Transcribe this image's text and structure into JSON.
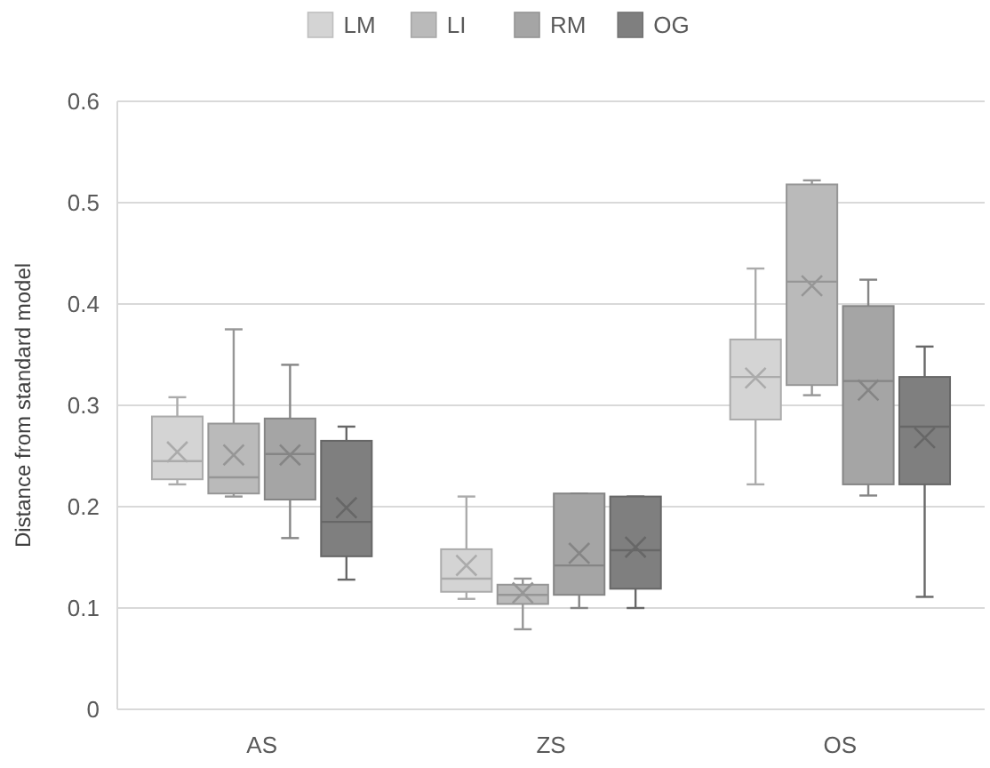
{
  "chart_data": {
    "type": "box",
    "ylabel": "Distance from standard model",
    "categories": [
      "AS",
      "ZS",
      "OS"
    ],
    "ylim": [
      0,
      0.6
    ],
    "yticks": [
      0,
      0.1,
      0.2,
      0.3,
      0.4,
      0.5,
      0.6
    ],
    "grid": "y",
    "legend": "top",
    "series": [
      {
        "name": "LM",
        "color": "#d4d4d4",
        "boxes": [
          {
            "low": 0.222,
            "q1": 0.227,
            "median": 0.245,
            "q3": 0.289,
            "high": 0.308,
            "mean": 0.254
          },
          {
            "low": 0.109,
            "q1": 0.116,
            "median": 0.129,
            "q3": 0.158,
            "high": 0.21,
            "mean": 0.142
          },
          {
            "low": 0.222,
            "q1": 0.286,
            "median": 0.328,
            "q3": 0.365,
            "high": 0.435,
            "mean": 0.327
          }
        ]
      },
      {
        "name": "LI",
        "color": "#bababa",
        "boxes": [
          {
            "low": 0.21,
            "q1": 0.213,
            "median": 0.229,
            "q3": 0.282,
            "high": 0.375,
            "mean": 0.251
          },
          {
            "low": 0.079,
            "q1": 0.104,
            "median": 0.113,
            "q3": 0.123,
            "high": 0.129,
            "mean": 0.115
          },
          {
            "low": 0.31,
            "q1": 0.32,
            "median": 0.422,
            "q3": 0.518,
            "high": 0.522,
            "mean": 0.418
          }
        ]
      },
      {
        "name": "RM",
        "color": "#a5a5a5",
        "boxes": [
          {
            "low": 0.169,
            "q1": 0.207,
            "median": 0.252,
            "q3": 0.287,
            "high": 0.34,
            "mean": 0.251
          },
          {
            "low": 0.1,
            "q1": 0.113,
            "median": 0.142,
            "q3": 0.213,
            "high": 0.213,
            "mean": 0.154
          },
          {
            "low": 0.211,
            "q1": 0.222,
            "median": 0.324,
            "q3": 0.398,
            "high": 0.424,
            "mean": 0.315
          }
        ]
      },
      {
        "name": "OG",
        "color": "#7f7f7f",
        "boxes": [
          {
            "low": 0.128,
            "q1": 0.151,
            "median": 0.185,
            "q3": 0.265,
            "high": 0.279,
            "mean": 0.199
          },
          {
            "low": 0.1,
            "q1": 0.119,
            "median": 0.157,
            "q3": 0.21,
            "high": 0.21,
            "mean": 0.16
          },
          {
            "low": 0.111,
            "q1": 0.222,
            "median": 0.279,
            "q3": 0.328,
            "high": 0.358,
            "mean": 0.268
          }
        ]
      }
    ]
  }
}
